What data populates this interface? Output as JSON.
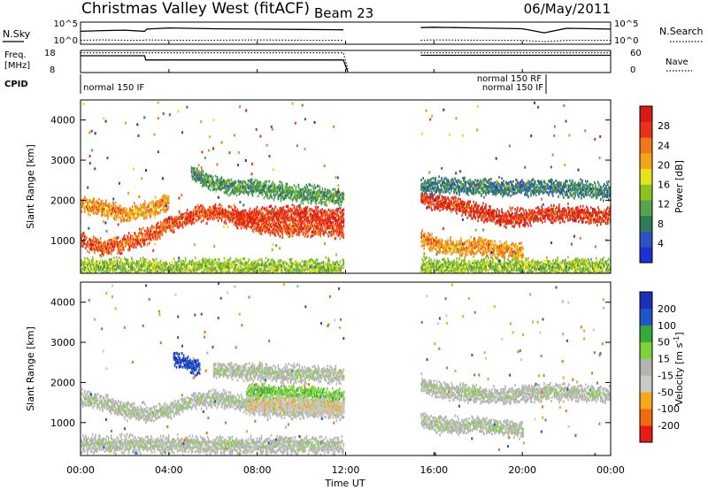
{
  "header": {
    "title": "Christmas Valley West (fitACF)",
    "beam": "Beam 23",
    "date": "06/May/2011"
  },
  "nsky_panel": {
    "left_label": "N.Sky",
    "right_label": "N.Search",
    "ticks_left": [
      "10^5",
      "10^0"
    ],
    "ticks_right": [
      "10^5",
      "10^0"
    ]
  },
  "freq_panel": {
    "left_label_line1": "Freq.",
    "left_label_line2": "[MHz]",
    "right_label": "Nave",
    "ticks_left": [
      "18",
      "8"
    ],
    "ticks_right": [
      "60",
      "0"
    ]
  },
  "cpid": {
    "label": "CPID",
    "entries": [
      "normal 150 IF",
      "normal 150 RF",
      "normal 150 IF"
    ]
  },
  "x_axis": {
    "label": "Time UT",
    "tick_labels": [
      "00:00",
      "04:00",
      "08:00",
      "12:00",
      "16:00",
      "20:00",
      "00:00"
    ]
  },
  "colors": {
    "power": [
      "#1f2fd6",
      "#2e52c4",
      "#2f7c55",
      "#55a34a",
      "#8cc21e",
      "#e8e21a",
      "#f4a41a",
      "#f0781a",
      "#ea2f1a",
      "#d81a10"
    ],
    "velocity": [
      "#e81a14",
      "#f06a14",
      "#f6a81a",
      "#c8c8c4",
      "#b4b4b0",
      "#7fd13a",
      "#36a83a",
      "#2055c8",
      "#1b2fb8"
    ],
    "ground_scatter": "#bdbdb8"
  },
  "chart_data": [
    {
      "type": "line",
      "panel": "nsky_nsearch",
      "x": [
        0,
        1,
        2,
        2.9,
        3,
        4,
        6,
        8,
        10,
        11.9,
        15.4,
        16,
        18,
        20,
        21,
        22,
        24
      ],
      "series": [
        {
          "name": "N.Sky",
          "values": [
            3.0,
            3.2,
            3.3,
            3.0,
            3.6,
            3.9,
            3.7,
            3.6,
            3.5,
            3.4,
            4.0,
            4.1,
            3.9,
            3.7,
            2.6,
            3.8,
            3.6
          ]
        },
        {
          "name": "N.Search",
          "values": [
            0.6,
            0.7,
            0.6,
            0.6,
            0.7,
            0.6,
            0.6,
            0.7,
            0.6,
            0.6,
            0.6,
            0.7,
            0.6,
            0.6,
            0.2,
            0.6,
            0.6
          ]
        }
      ],
      "ylim": [
        0,
        5
      ],
      "y_scale": "log"
    },
    {
      "type": "line",
      "panel": "freq_nave",
      "x": [
        0,
        2.9,
        2.95,
        11.9,
        12.1,
        15.4,
        21,
        24
      ],
      "series": [
        {
          "name": "Freq.",
          "values": [
            16.2,
            16.2,
            14.0,
            14.0,
            8.0,
            16.4,
            16.4,
            16.4
          ]
        },
        {
          "name": "Nave",
          "values": [
            58,
            58,
            58,
            58,
            8,
            58,
            58,
            58
          ]
        }
      ],
      "ylim_left": [
        8,
        18
      ],
      "ylim_right": [
        0,
        60
      ]
    },
    {
      "type": "heatmap",
      "panel": "power",
      "ylabel": "Slant Range [km]",
      "colorbar_label": "Power [dB]",
      "xlim": [
        0,
        24
      ],
      "ylim": [
        180,
        4500
      ],
      "y_ticks": [
        1000,
        2000,
        3000,
        4000
      ],
      "colorbar_ticks": [
        4,
        8,
        12,
        16,
        20,
        24,
        28
      ],
      "clim": [
        0,
        32
      ],
      "data_gap_hours": [
        12.0,
        15.4
      ],
      "bands": [
        {
          "t": [
            0,
            1,
            2,
            3,
            4,
            5,
            6,
            7,
            8,
            9,
            10,
            11,
            11.9
          ],
          "range": [
            1000,
            800,
            900,
            1100,
            1400,
            1600,
            1700,
            1600,
            1400,
            1300,
            1300,
            1300,
            1250
          ],
          "power": 26
        },
        {
          "t": [
            0,
            1,
            2,
            3,
            4
          ],
          "range": [
            1900,
            1800,
            1650,
            1750,
            1950
          ],
          "power": 22
        },
        {
          "t": [
            7,
            8,
            9,
            10,
            11,
            11.9
          ],
          "range": [
            1500,
            1600,
            1650,
            1650,
            1600,
            1550
          ],
          "power": 28
        },
        {
          "t": [
            5,
            6,
            7,
            8,
            9,
            10,
            11,
            11.9
          ],
          "range": [
            2700,
            2400,
            2300,
            2300,
            2200,
            2150,
            2100,
            2050
          ],
          "power": 10
        },
        {
          "t": [
            0,
            2,
            4,
            6,
            8,
            10,
            11.9
          ],
          "range": [
            330,
            340,
            300,
            330,
            320,
            310,
            300
          ],
          "power": 14
        },
        {
          "t": [
            15.4,
            16,
            17,
            18,
            19,
            20,
            21,
            22,
            23,
            24
          ],
          "range": [
            2050,
            1950,
            1850,
            1700,
            1550,
            1550,
            1650,
            1650,
            1600,
            1600
          ],
          "power": 28
        },
        {
          "t": [
            15.4,
            16,
            17,
            18,
            19,
            20
          ],
          "range": [
            1050,
            900,
            800,
            850,
            750,
            700
          ],
          "power": 22
        },
        {
          "t": [
            15.4,
            17,
            19,
            21,
            23,
            24
          ],
          "range": [
            2350,
            2350,
            2300,
            2300,
            2250,
            2200
          ],
          "power": 8
        },
        {
          "t": [
            15.4,
            17,
            19,
            21,
            23,
            24
          ],
          "range": [
            330,
            330,
            330,
            330,
            330,
            330
          ],
          "power": 14
        }
      ]
    },
    {
      "type": "heatmap",
      "panel": "velocity",
      "ylabel": "Slant Range [km]",
      "colorbar_label": "Velocity [m s^-1]",
      "xlim": [
        0,
        24
      ],
      "ylim": [
        180,
        4500
      ],
      "y_ticks": [
        1000,
        2000,
        3000,
        4000
      ],
      "colorbar_ticks": [
        -200,
        -100,
        -50,
        -15,
        15,
        50,
        100,
        200
      ],
      "clim": [
        -250,
        250
      ],
      "data_gap_hours": [
        12.0,
        15.4
      ],
      "bands": [
        {
          "t": [
            0,
            1,
            2,
            3,
            4,
            5,
            6,
            7,
            8,
            9,
            10,
            11,
            11.9
          ],
          "range": [
            1600,
            1500,
            1300,
            1200,
            1300,
            1500,
            1600,
            1500,
            1400,
            1300,
            1300,
            1300,
            1250
          ],
          "velocity": 0
        },
        {
          "t": [
            7.5,
            8,
            9,
            10,
            11,
            11.9
          ],
          "range": [
            1700,
            1750,
            1750,
            1700,
            1650,
            1600
          ],
          "velocity": 40
        },
        {
          "t": [
            7.5,
            8,
            9,
            10,
            11,
            11.9
          ],
          "range": [
            1450,
            1400,
            1450,
            1450,
            1400,
            1400
          ],
          "velocity": -40
        },
        {
          "t": [
            4.2,
            4.6,
            5.0,
            5.4
          ],
          "range": [
            2600,
            2500,
            2400,
            2350
          ],
          "velocity": 200
        },
        {
          "t": [
            6,
            7,
            8,
            9,
            10,
            11,
            11.9
          ],
          "range": [
            2300,
            2250,
            2250,
            2200,
            2200,
            2200,
            2150
          ],
          "velocity": 0
        },
        {
          "t": [
            15.4,
            16,
            17,
            18,
            19,
            20,
            21,
            22,
            23,
            24
          ],
          "range": [
            1950,
            1800,
            1750,
            1700,
            1650,
            1700,
            1750,
            1750,
            1700,
            1700
          ],
          "velocity": 0
        },
        {
          "t": [
            15.4,
            16,
            17,
            18,
            19,
            20
          ],
          "range": [
            1100,
            950,
            900,
            950,
            850,
            800
          ],
          "velocity": 0
        },
        {
          "t": [
            0,
            3,
            6,
            9,
            11.9
          ],
          "range": [
            450,
            450,
            420,
            430,
            420
          ],
          "velocity": 0
        }
      ]
    }
  ]
}
